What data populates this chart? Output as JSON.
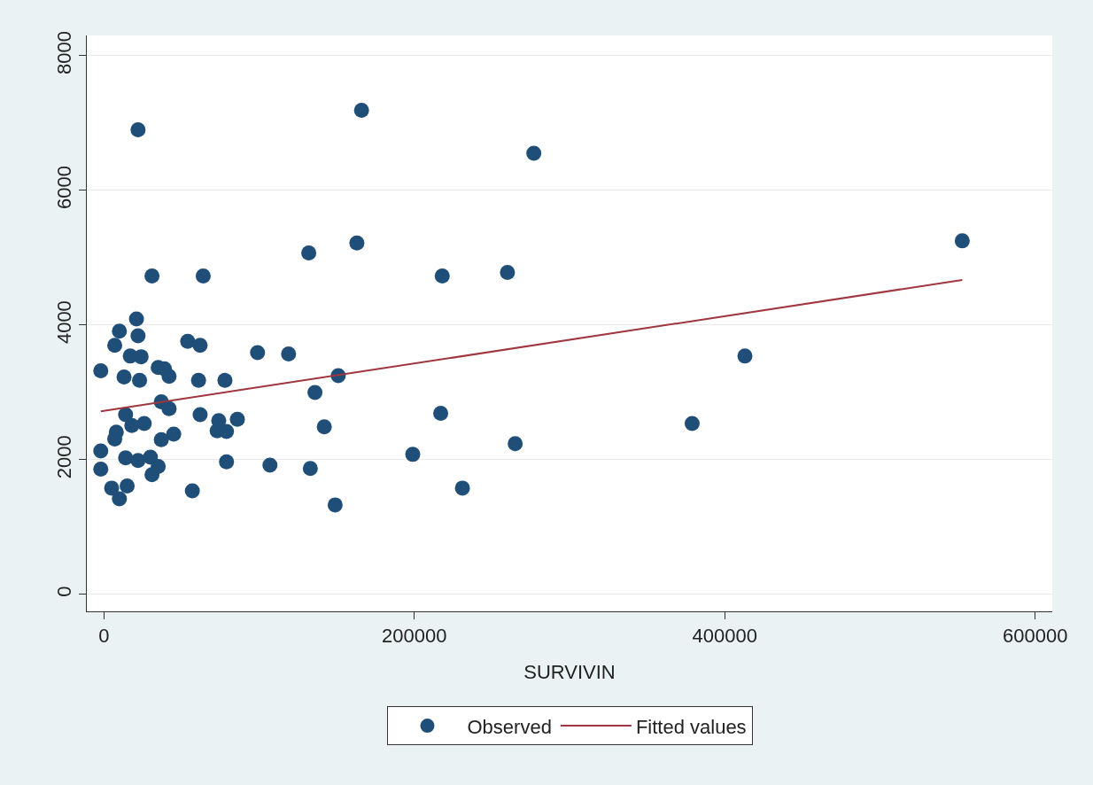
{
  "chart_data": {
    "type": "scatter",
    "xlabel": "SURVIVIN",
    "xlim": [
      -11000,
      611000
    ],
    "ylim": [
      -250,
      8300
    ],
    "xticks": [
      0,
      200000,
      400000,
      600000
    ],
    "yticks": [
      0,
      2000,
      4000,
      6000,
      8000
    ],
    "grid": "y",
    "legend": "bottom",
    "marker": "circle",
    "series": [
      {
        "name": "Observed",
        "color": "#1f4e79",
        "x": [
          31000,
          64000,
          21000,
          10000,
          22000,
          7000,
          54000,
          62000,
          99000,
          17000,
          24000,
          -2000,
          13000,
          23000,
          35000,
          39000,
          42000,
          61000,
          78000,
          37000,
          42000,
          14000,
          18000,
          26000,
          62000,
          74000,
          86000,
          73000,
          79000,
          8000,
          7000,
          37000,
          45000,
          -2000,
          14000,
          22000,
          30000,
          35000,
          31000,
          -2000,
          79000,
          107000,
          5000,
          15000,
          10000,
          57000,
          22000,
          166000,
          277000,
          132000,
          163000,
          218000,
          260000,
          119000,
          151000,
          136000,
          142000,
          217000,
          265000,
          199000,
          133000,
          231000,
          149000,
          553000,
          413000,
          379000
        ],
        "values": [
          4730,
          4730,
          4090,
          3910,
          3840,
          3700,
          3760,
          3700,
          3590,
          3540,
          3530,
          3320,
          3230,
          3180,
          3370,
          3350,
          3240,
          3180,
          3180,
          2860,
          2760,
          2670,
          2510,
          2540,
          2670,
          2580,
          2600,
          2430,
          2420,
          2410,
          2310,
          2300,
          2380,
          2130,
          2030,
          1990,
          2040,
          1900,
          1780,
          1860,
          1970,
          1920,
          1580,
          1610,
          1420,
          1540,
          6900,
          7190,
          6550,
          5070,
          5220,
          4730,
          4780,
          3570,
          3250,
          3000,
          2490,
          2690,
          2240,
          2080,
          1870,
          1580,
          1330,
          5250,
          3540,
          2540
        ]
      },
      {
        "name": "Fitted values",
        "type": "line",
        "color": "#a0363e",
        "line_style": "solid",
        "marker": "none",
        "x": [
          -2000,
          553000
        ],
        "values": [
          2720,
          4670
        ]
      }
    ]
  }
}
